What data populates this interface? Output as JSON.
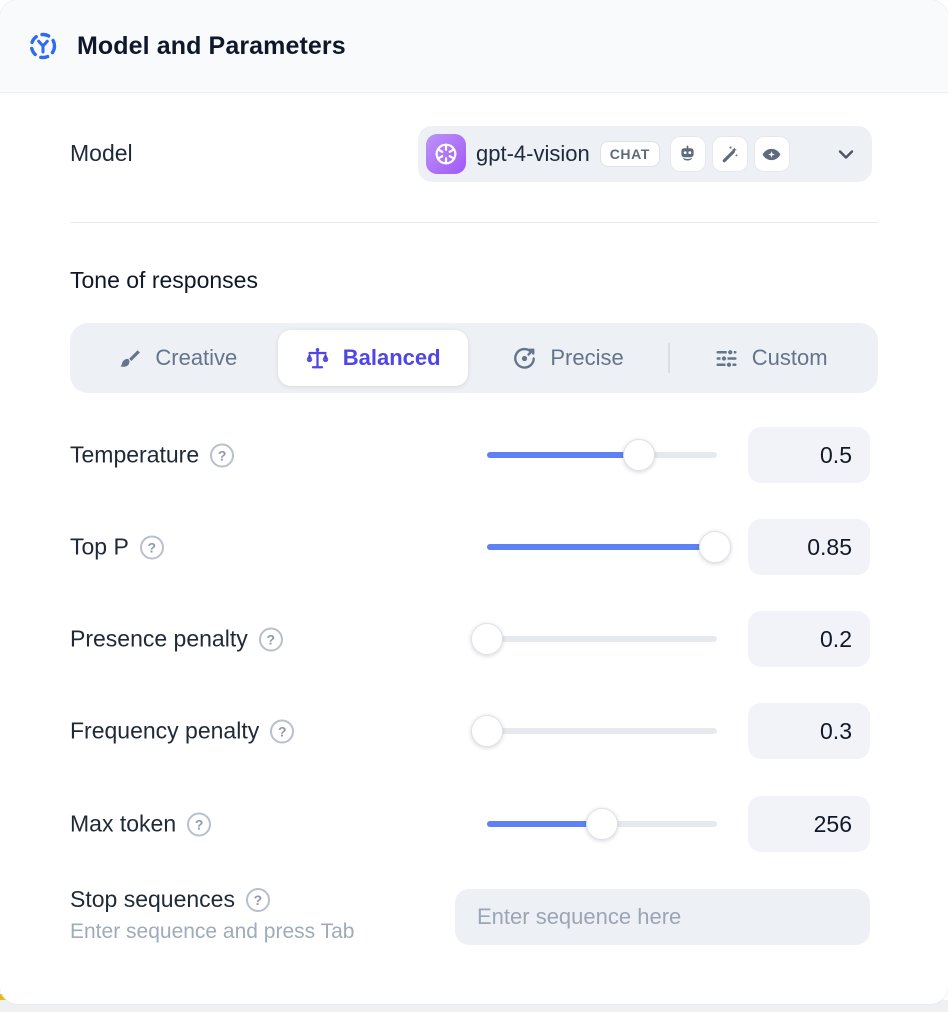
{
  "header": {
    "title": "Model and Parameters"
  },
  "model": {
    "label": "Model",
    "name": "gpt-4-vision",
    "type_badge": "CHAT",
    "capability_icons": [
      "robot-icon",
      "magic-wand-icon",
      "vision-icon"
    ]
  },
  "tone": {
    "heading": "Tone of responses",
    "selected": "Balanced",
    "options": [
      {
        "label": "Creative",
        "icon": "paintbrush-icon"
      },
      {
        "label": "Balanced",
        "icon": "balance-scale-icon"
      },
      {
        "label": "Precise",
        "icon": "target-icon"
      },
      {
        "label": "Custom",
        "icon": "sliders-icon"
      }
    ]
  },
  "parameters": [
    {
      "label": "Temperature",
      "value": "0.5",
      "slider_percent": 66
    },
    {
      "label": "Top P",
      "value": "0.85",
      "slider_percent": 99
    },
    {
      "label": "Presence penalty",
      "value": "0.2",
      "slider_percent": 0
    },
    {
      "label": "Frequency penalty",
      "value": "0.3",
      "slider_percent": 0
    },
    {
      "label": "Max token",
      "value": "256",
      "slider_percent": 50
    }
  ],
  "stop_sequences": {
    "label": "Stop sequences",
    "hint": "Enter sequence and press Tab",
    "placeholder": "Enter sequence here"
  },
  "icons": {
    "help": "?"
  },
  "colors": {
    "accent_indigo": "#4f46e5",
    "slider_blue": "#5e82f6",
    "header_icon_blue": "#2e6bef",
    "openai_purple": "#a158f5",
    "header_bg": "#f8fafc",
    "control_bg": "#edf0f5"
  }
}
